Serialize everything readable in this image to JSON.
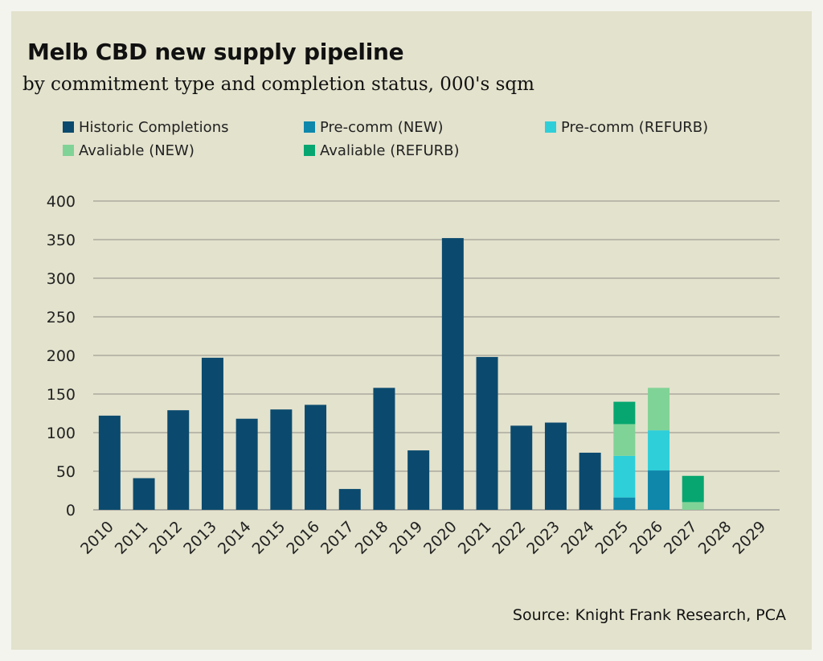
{
  "chart_data": {
    "type": "bar",
    "stacked": true,
    "title": "Melb CBD new supply pipeline",
    "subtitle": "by commitment type and completion status, 000's sqm",
    "xlabel": "",
    "ylabel": "",
    "ylim": [
      0,
      400
    ],
    "yticks": [
      0,
      50,
      100,
      150,
      200,
      250,
      300,
      350,
      400
    ],
    "grid": true,
    "legend_position": "top",
    "categories": [
      "2010",
      "2011",
      "2012",
      "2013",
      "2014",
      "2015",
      "2016",
      "2017",
      "2018",
      "2019",
      "2020",
      "2021",
      "2022",
      "2023",
      "2024",
      "2025",
      "2026",
      "2027",
      "2028",
      "2029"
    ],
    "series": [
      {
        "name": "Historic Completions",
        "color": "#0b4a6e",
        "values": [
          122,
          41,
          129,
          197,
          118,
          130,
          136,
          27,
          158,
          77,
          352,
          198,
          109,
          113,
          74,
          0,
          0,
          0,
          0,
          0
        ]
      },
      {
        "name": "Pre-comm (NEW)",
        "color": "#0e87ab",
        "values": [
          0,
          0,
          0,
          0,
          0,
          0,
          0,
          0,
          0,
          0,
          0,
          0,
          0,
          0,
          0,
          16,
          51,
          0,
          0,
          0
        ]
      },
      {
        "name": "Pre-comm (REFURB)",
        "color": "#2ecfd9",
        "values": [
          0,
          0,
          0,
          0,
          0,
          0,
          0,
          0,
          0,
          0,
          0,
          0,
          0,
          0,
          0,
          54,
          52,
          0,
          0,
          0
        ]
      },
      {
        "name": "Avaliable (NEW)",
        "color": "#80d396",
        "values": [
          0,
          0,
          0,
          0,
          0,
          0,
          0,
          0,
          0,
          0,
          0,
          0,
          0,
          0,
          0,
          41,
          55,
          10,
          0,
          0
        ]
      },
      {
        "name": "Avaliable (REFURB)",
        "color": "#07a670",
        "values": [
          0,
          0,
          0,
          0,
          0,
          0,
          0,
          0,
          0,
          0,
          0,
          0,
          0,
          0,
          0,
          29,
          0,
          34,
          0,
          0
        ]
      }
    ]
  },
  "source": "Source: Knight Frank Research, PCA"
}
